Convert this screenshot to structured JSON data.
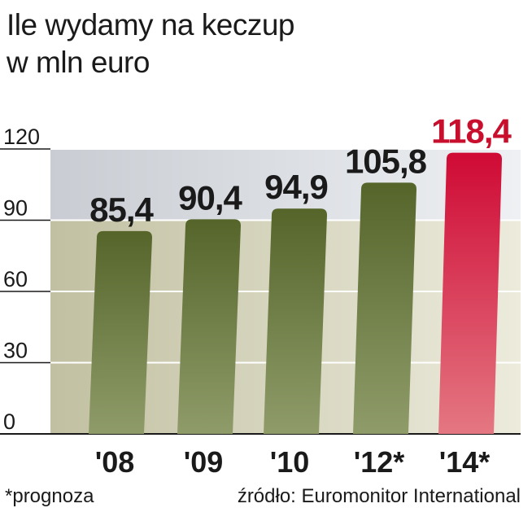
{
  "title_line1": "Ile wydamy na keczup",
  "title_line2": "w mln euro",
  "footnote": "*prognoza",
  "source": "źródło: Euromonitor International",
  "colors": {
    "bar": "#5a6a2a",
    "bar_light": "#8a9a62",
    "highlight": "#d0103a",
    "highlight_light": "#e06a7a",
    "label": "#1a1a1a",
    "highlight_label": "#c8102e"
  },
  "chart_data": {
    "type": "bar",
    "title": "Ile wydamy na keczup",
    "subtitle": "w mln euro",
    "categories": [
      "'08",
      "'09",
      "'10",
      "'12*",
      "'14*"
    ],
    "values": [
      85.4,
      90.4,
      94.9,
      105.8,
      118.4
    ],
    "value_labels": [
      "85,4",
      "90,4",
      "94,9",
      "105,8",
      "118,4"
    ],
    "highlight_index": 4,
    "y_ticks": [
      0,
      30,
      60,
      90,
      120
    ],
    "ylim": [
      0,
      120
    ],
    "xlabel": "",
    "ylabel": "",
    "grid": true
  }
}
